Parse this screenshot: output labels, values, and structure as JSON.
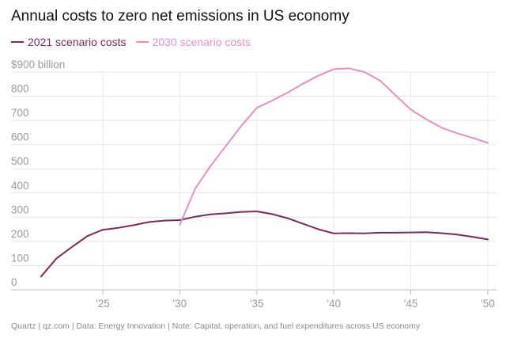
{
  "chart_data": {
    "type": "line",
    "title": "Annual costs to zero net emissions in US economy",
    "ylabel": "",
    "xlabel": "",
    "ytick_labels": [
      "0",
      "100",
      "200",
      "300",
      "400",
      "500",
      "600",
      "700",
      "800",
      "$900 billion"
    ],
    "yticks": [
      0,
      100,
      200,
      300,
      400,
      500,
      600,
      700,
      800,
      900
    ],
    "xtick_labels": [
      "'25",
      "'30",
      "'35",
      "'40",
      "'45",
      "'50"
    ],
    "xticks": [
      2025,
      2030,
      2035,
      2040,
      2045,
      2050
    ],
    "xlim": [
      2020,
      2050
    ],
    "ylim": [
      0,
      900
    ],
    "series": [
      {
        "name": "2021 scenario costs",
        "color": "#7a2a5e",
        "x": [
          2021,
          2022,
          2023,
          2024,
          2025,
          2026,
          2027,
          2028,
          2029,
          2030,
          2031,
          2032,
          2033,
          2034,
          2035,
          2036,
          2037,
          2038,
          2039,
          2040,
          2041,
          2042,
          2043,
          2044,
          2045,
          2046,
          2047,
          2048,
          2049,
          2050
        ],
        "values": [
          55,
          130,
          177,
          222,
          248,
          256,
          267,
          280,
          286,
          288,
          302,
          312,
          316,
          322,
          324,
          313,
          296,
          273,
          250,
          233,
          234,
          233,
          236,
          236,
          237,
          238,
          234,
          228,
          219,
          208
        ]
      },
      {
        "name": "2030 scenario costs",
        "color": "#e58fc8",
        "x": [
          2030,
          2031,
          2032,
          2033,
          2034,
          2035,
          2036,
          2037,
          2038,
          2039,
          2040,
          2041,
          2042,
          2043,
          2044,
          2045,
          2046,
          2047,
          2048,
          2049,
          2050
        ],
        "values": [
          268,
          418,
          512,
          595,
          678,
          752,
          782,
          815,
          852,
          885,
          912,
          915,
          900,
          865,
          804,
          745,
          705,
          670,
          647,
          628,
          607
        ]
      }
    ]
  },
  "footer": {
    "text": "Quartz | qz.com | Data: Energy Innovation | Note: Capital, operation, and fuel expenditures across US economy"
  }
}
